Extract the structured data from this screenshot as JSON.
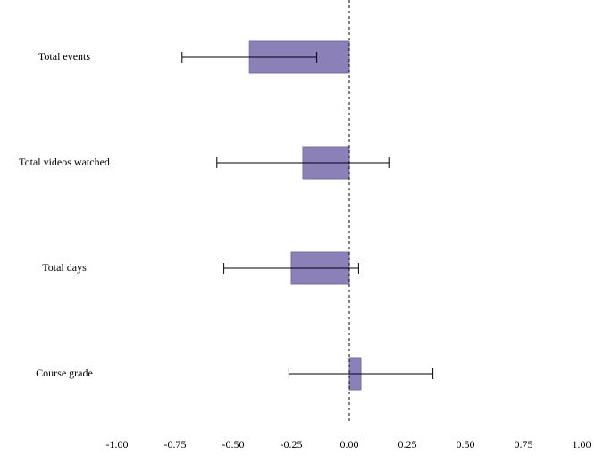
{
  "chart_data": {
    "type": "bar",
    "orientation": "horizontal",
    "categories": [
      "Total events",
      "Total videos watched",
      "Total days",
      "Course grade"
    ],
    "values": [
      -0.43,
      -0.2,
      -0.25,
      0.05
    ],
    "errors": [
      0.29,
      0.37,
      0.29,
      0.31
    ],
    "color": "#8c80b8",
    "xlim": [
      -1,
      1
    ],
    "xticks": [
      {
        "value": -1,
        "label": "-1.00"
      },
      {
        "value": -0.75,
        "label": "-0.75"
      },
      {
        "value": -0.5,
        "label": "-0.50"
      },
      {
        "value": -0.25,
        "label": "-0.25"
      },
      {
        "value": 0,
        "label": "0.00"
      },
      {
        "value": 0.25,
        "label": "0.25"
      },
      {
        "value": 0.5,
        "label": "0.50"
      },
      {
        "value": 0.75,
        "label": "0.75"
      },
      {
        "value": 1,
        "label": "1.00"
      }
    ],
    "grid": false
  }
}
